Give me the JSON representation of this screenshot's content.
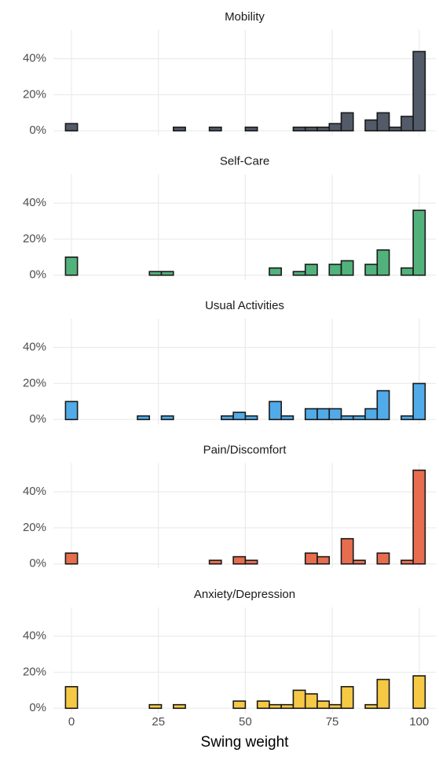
{
  "chart_data": [
    {
      "type": "histogram",
      "title": "Mobility",
      "color": "#535b69",
      "bins": [
        -1.72,
        1.72,
        5.17,
        8.62,
        12.07,
        15.52,
        18.97,
        22.41,
        25.86,
        29.31,
        32.76,
        36.21,
        39.66,
        43.1,
        46.55,
        50.0,
        53.45,
        56.9,
        60.34,
        63.79,
        67.24,
        70.69,
        74.14,
        77.59,
        81.03,
        84.48,
        87.93,
        91.38,
        94.83,
        98.28,
        101.72
      ],
      "values": [
        4,
        0,
        0,
        0,
        0,
        0,
        0,
        0,
        0,
        2,
        0,
        0,
        2,
        0,
        0,
        2,
        0,
        0,
        0,
        2,
        2,
        2,
        4,
        10,
        0,
        6,
        10,
        2,
        8,
        44
      ],
      "xlim": [
        -5.2,
        104.8
      ],
      "xticks": [
        0,
        25,
        50,
        75,
        100
      ],
      "ylim": [
        -2.5,
        56
      ],
      "yticks": [
        {
          "value": 0,
          "label": "0%"
        },
        {
          "value": 20,
          "label": "20%"
        },
        {
          "value": 40,
          "label": "40%"
        }
      ],
      "grid": true
    },
    {
      "type": "histogram",
      "title": "Self-Care",
      "color": "#52b27b",
      "bins": [
        -1.72,
        1.72,
        5.17,
        8.62,
        12.07,
        15.52,
        18.97,
        22.41,
        25.86,
        29.31,
        32.76,
        36.21,
        39.66,
        43.1,
        46.55,
        50.0,
        53.45,
        56.9,
        60.34,
        63.79,
        67.24,
        70.69,
        74.14,
        77.59,
        81.03,
        84.48,
        87.93,
        91.38,
        94.83,
        98.28,
        101.72
      ],
      "values": [
        10,
        0,
        0,
        0,
        0,
        0,
        0,
        2,
        2,
        0,
        0,
        0,
        0,
        0,
        0,
        0,
        0,
        4,
        0,
        2,
        6,
        0,
        6,
        8,
        0,
        6,
        14,
        0,
        4,
        36
      ],
      "xlim": [
        -5.2,
        104.8
      ],
      "xticks": [
        0,
        25,
        50,
        75,
        100
      ],
      "ylim": [
        -2.5,
        56
      ],
      "yticks": [
        {
          "value": 0,
          "label": "0%"
        },
        {
          "value": 20,
          "label": "20%"
        },
        {
          "value": 40,
          "label": "40%"
        }
      ],
      "grid": true
    },
    {
      "type": "histogram",
      "title": "Usual Activities",
      "color": "#50abe8",
      "bins": [
        -1.72,
        1.72,
        5.17,
        8.62,
        12.07,
        15.52,
        18.97,
        22.41,
        25.86,
        29.31,
        32.76,
        36.21,
        39.66,
        43.1,
        46.55,
        50.0,
        53.45,
        56.9,
        60.34,
        63.79,
        67.24,
        70.69,
        74.14,
        77.59,
        81.03,
        84.48,
        87.93,
        91.38,
        94.83,
        98.28,
        101.72
      ],
      "values": [
        10,
        0,
        0,
        0,
        0,
        0,
        2,
        0,
        2,
        0,
        0,
        0,
        0,
        2,
        4,
        2,
        0,
        10,
        2,
        0,
        6,
        6,
        6,
        2,
        2,
        6,
        16,
        0,
        2,
        20
      ],
      "xlim": [
        -5.2,
        104.8
      ],
      "xticks": [
        0,
        25,
        50,
        75,
        100
      ],
      "ylim": [
        -2.5,
        56
      ],
      "yticks": [
        {
          "value": 0,
          "label": "0%"
        },
        {
          "value": 20,
          "label": "20%"
        },
        {
          "value": 40,
          "label": "40%"
        }
      ],
      "grid": true
    },
    {
      "type": "histogram",
      "title": "Pain/Discomfort",
      "color": "#e76d4e",
      "bins": [
        -1.72,
        1.72,
        5.17,
        8.62,
        12.07,
        15.52,
        18.97,
        22.41,
        25.86,
        29.31,
        32.76,
        36.21,
        39.66,
        43.1,
        46.55,
        50.0,
        53.45,
        56.9,
        60.34,
        63.79,
        67.24,
        70.69,
        74.14,
        77.59,
        81.03,
        84.48,
        87.93,
        91.38,
        94.83,
        98.28,
        101.72
      ],
      "values": [
        6,
        0,
        0,
        0,
        0,
        0,
        0,
        0,
        0,
        0,
        0,
        0,
        2,
        0,
        4,
        2,
        0,
        0,
        0,
        0,
        6,
        4,
        0,
        14,
        2,
        0,
        6,
        0,
        2,
        52
      ],
      "xlim": [
        -5.2,
        104.8
      ],
      "xticks": [
        0,
        25,
        50,
        75,
        100
      ],
      "ylim": [
        -2.5,
        56
      ],
      "yticks": [
        {
          "value": 0,
          "label": "0%"
        },
        {
          "value": 20,
          "label": "20%"
        },
        {
          "value": 40,
          "label": "40%"
        }
      ],
      "grid": true
    },
    {
      "type": "histogram",
      "title": "Anxiety/Depression",
      "color": "#f6c944",
      "bins": [
        -1.72,
        1.72,
        5.17,
        8.62,
        12.07,
        15.52,
        18.97,
        22.41,
        25.86,
        29.31,
        32.76,
        36.21,
        39.66,
        43.1,
        46.55,
        50.0,
        53.45,
        56.9,
        60.34,
        63.79,
        67.24,
        70.69,
        74.14,
        77.59,
        81.03,
        84.48,
        87.93,
        91.38,
        94.83,
        98.28,
        101.72
      ],
      "values": [
        12,
        0,
        0,
        0,
        0,
        0,
        0,
        2,
        0,
        2,
        0,
        0,
        0,
        0,
        4,
        0,
        4,
        2,
        2,
        10,
        8,
        4,
        2,
        12,
        0,
        2,
        16,
        0,
        0,
        18
      ],
      "xlim": [
        -5.2,
        104.8
      ],
      "xticks": [
        0,
        25,
        50,
        75,
        100
      ],
      "ylim": [
        -2.5,
        56
      ],
      "yticks": [
        {
          "value": 0,
          "label": "0%"
        },
        {
          "value": 20,
          "label": "20%"
        },
        {
          "value": 40,
          "label": "40%"
        }
      ],
      "grid": true,
      "xlabel": "Swing weight"
    }
  ]
}
